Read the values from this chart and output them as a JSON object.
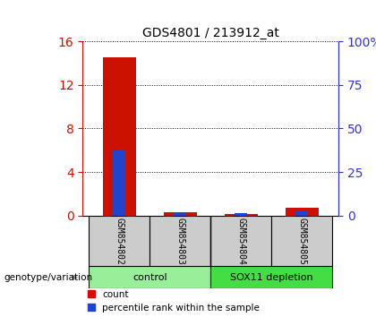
{
  "title": "GDS4801 / 213912_at",
  "samples": [
    "GSM854802",
    "GSM854803",
    "GSM854804",
    "GSM854805"
  ],
  "count_values": [
    14.5,
    0.3,
    0.15,
    0.75
  ],
  "percentile_values": [
    6.0,
    0.32,
    0.25,
    0.48
  ],
  "left_ylim": [
    0,
    16
  ],
  "left_yticks": [
    0,
    4,
    8,
    12,
    16
  ],
  "right_ylim": [
    0,
    100
  ],
  "right_yticks": [
    0,
    25,
    50,
    75,
    100
  ],
  "right_yticklabels": [
    "0",
    "25",
    "50",
    "75",
    "100%"
  ],
  "count_color": "#cc1100",
  "percentile_color": "#2244cc",
  "groups": [
    {
      "label": "control",
      "indices": [
        0,
        1
      ],
      "color": "#99ee99"
    },
    {
      "label": "SOX11 depletion",
      "indices": [
        2,
        3
      ],
      "color": "#44dd44"
    }
  ],
  "group_label_text": "genotype/variation",
  "legend_count_label": "count",
  "legend_percentile_label": "percentile rank within the sample",
  "left_axis_color": "#cc1100",
  "right_axis_color": "#3333cc",
  "sample_box_color": "#cccccc",
  "bar_width": 0.55,
  "pct_bar_width": 0.2
}
